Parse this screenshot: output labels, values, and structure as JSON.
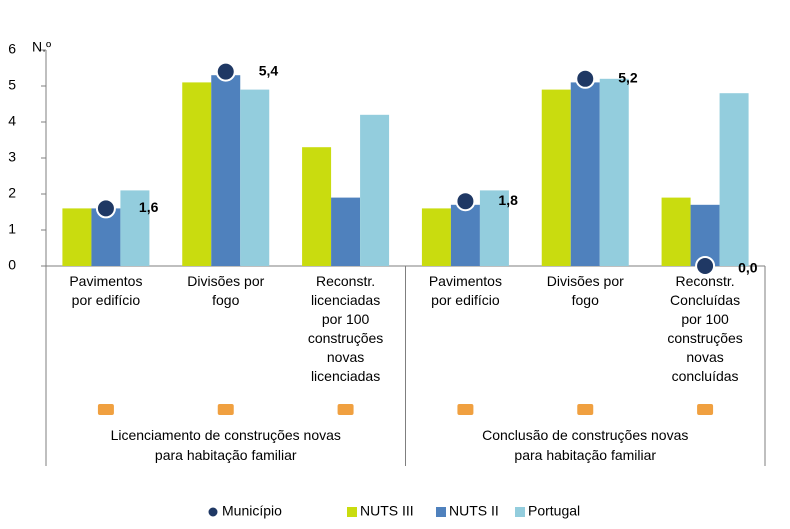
{
  "chart_data": {
    "type": "bar",
    "y_label": "N.º",
    "ylim": [
      0,
      6
    ],
    "yticks": [
      0,
      1,
      2,
      3,
      4,
      5,
      6
    ],
    "categories": [
      [
        "Pavimentos",
        "por edifício"
      ],
      [
        "Divisões por",
        "fogo"
      ],
      [
        "Reconstr.",
        "licenciadas",
        "por 100",
        "construções",
        "novas",
        "licenciadas"
      ],
      [
        "Pavimentos",
        "por edifício"
      ],
      [
        "Divisões por",
        "fogo"
      ],
      [
        "Reconstr.",
        "Concluídas",
        "por 100",
        "construções",
        "novas",
        "concluídas"
      ]
    ],
    "groups": [
      [
        "Licenciamento de construções novas",
        "para habitação familiar"
      ],
      [
        "Conclusão de construções novas",
        "para habitação familiar"
      ]
    ],
    "series": [
      {
        "name": "NUTS III",
        "color": "#c9dc0f",
        "values": [
          1.6,
          5.1,
          3.3,
          1.6,
          4.9,
          1.9
        ]
      },
      {
        "name": "NUTS II",
        "color": "#4f81bd",
        "values": [
          1.6,
          5.3,
          1.9,
          1.7,
          5.1,
          1.7
        ]
      },
      {
        "name": "Portugal",
        "color": "#93cddd",
        "values": [
          2.1,
          4.9,
          4.2,
          2.1,
          5.2,
          4.8
        ]
      }
    ],
    "markers": {
      "name": "Município",
      "color": "#1f3864",
      "values": [
        1.6,
        5.4,
        null,
        1.8,
        5.2,
        0.0
      ],
      "value_labels": [
        "1,6",
        "5,4",
        null,
        "1,8",
        "5,2",
        "0,0"
      ]
    }
  }
}
